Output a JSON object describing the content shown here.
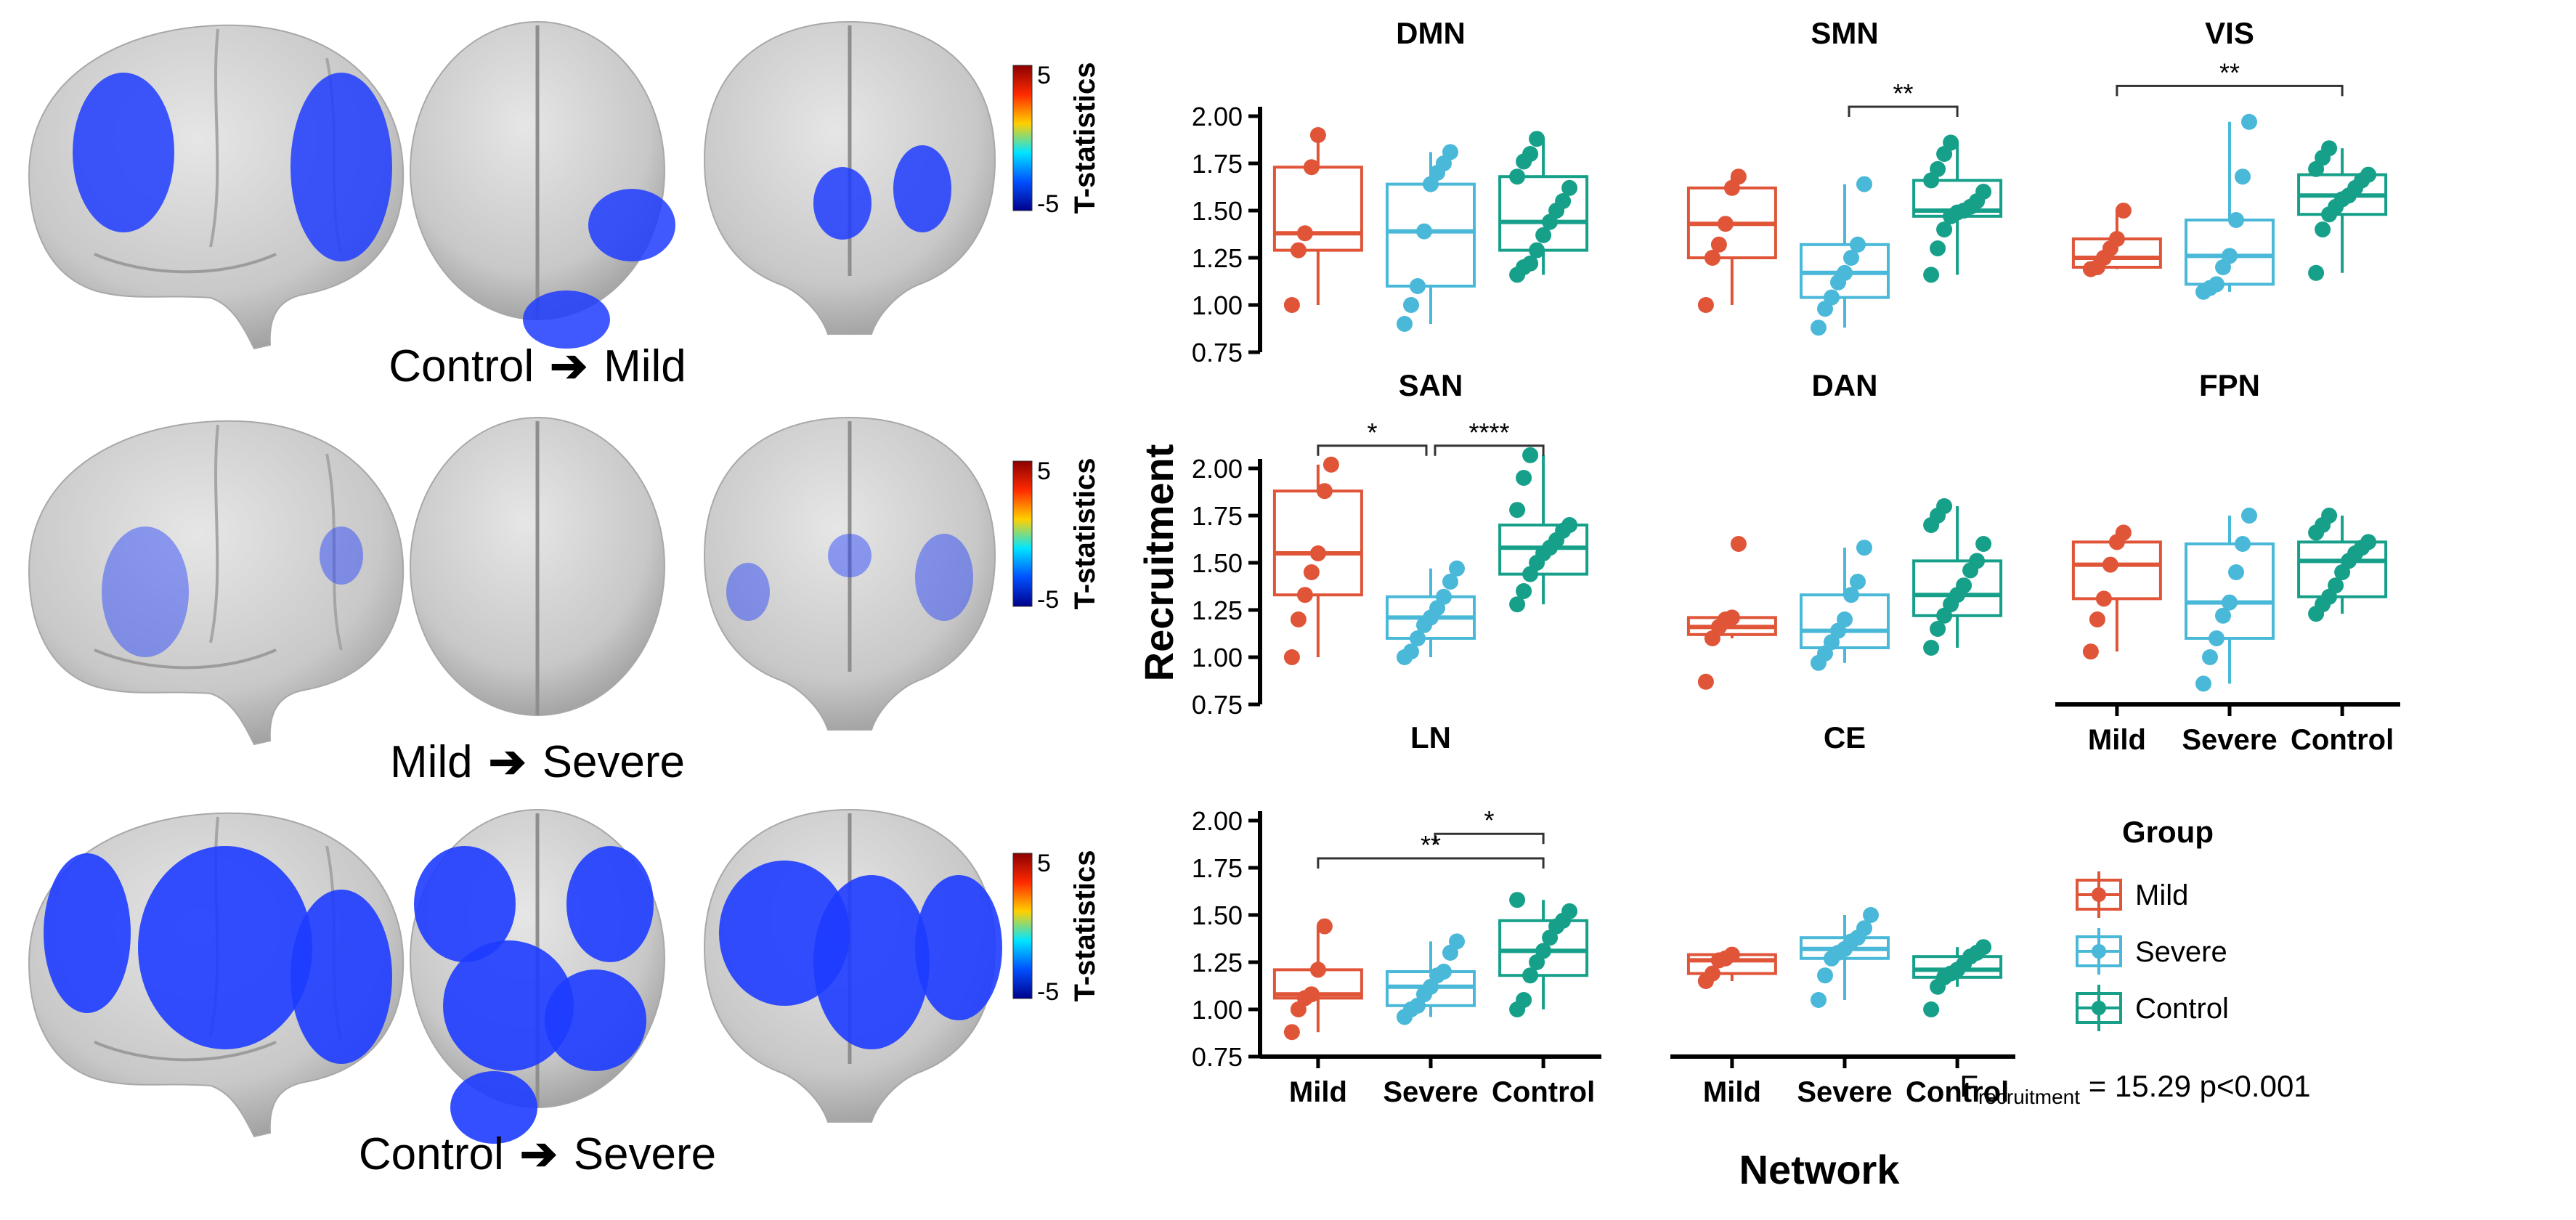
{
  "brain_panel": {
    "rows": [
      {
        "from": "Control",
        "to": "Mild",
        "arrow": "➔"
      },
      {
        "from": "Mild",
        "to": "Severe",
        "arrow": "➔"
      },
      {
        "from": "Control",
        "to": "Severe",
        "arrow": "➔"
      }
    ],
    "colorbar": {
      "label": "T-statistics",
      "max": "5",
      "min": "-5",
      "colors": [
        "#8b0000",
        "#ff2a00",
        "#ffd000",
        "#00e5ff",
        "#0050ff",
        "#00008b"
      ]
    },
    "activation_color": "#1e3cff",
    "surface_color": "#c8c8c8"
  },
  "chart_data": {
    "type": "box",
    "ylabel": "Recruitment",
    "xlabel": "Network",
    "yticks": [
      "2.00",
      "1.75",
      "1.50",
      "1.25",
      "1.00",
      "0.75"
    ],
    "ylim": [
      0.75,
      2.2
    ],
    "groups": [
      "Mild",
      "Severe",
      "Control"
    ],
    "group_colors": [
      "#e05438",
      "#4ab8d8",
      "#16a08a"
    ],
    "legend": {
      "title": "Group",
      "entries": [
        "Mild",
        "Severe",
        "Control"
      ],
      "placement": "right"
    },
    "stat_text": {
      "prefix": "F",
      "subscript": "recruitment",
      "suffix": " = 15.29 p<0.001"
    },
    "panels": [
      {
        "name": "DMN",
        "boxes": [
          {
            "q1": 1.29,
            "med": 1.38,
            "q3": 1.73,
            "lo": 1.0,
            "hi": 1.9,
            "points": [
              1.0,
              1.29,
              1.38,
              1.73,
              1.9
            ]
          },
          {
            "q1": 1.1,
            "med": 1.39,
            "q3": 1.64,
            "lo": 0.9,
            "hi": 1.81,
            "points": [
              0.9,
              1.0,
              1.1,
              1.39,
              1.64,
              1.7,
              1.75,
              1.81
            ]
          },
          {
            "q1": 1.29,
            "med": 1.44,
            "q3": 1.68,
            "lo": 1.16,
            "hi": 1.88,
            "points": [
              1.16,
              1.2,
              1.22,
              1.29,
              1.37,
              1.44,
              1.5,
              1.55,
              1.62,
              1.68,
              1.76,
              1.8,
              1.88
            ]
          }
        ],
        "brackets": []
      },
      {
        "name": "SMN",
        "boxes": [
          {
            "q1": 1.25,
            "med": 1.43,
            "q3": 1.62,
            "lo": 1.0,
            "hi": 1.68,
            "points": [
              1.0,
              1.25,
              1.32,
              1.43,
              1.62,
              1.68
            ]
          },
          {
            "q1": 1.04,
            "med": 1.17,
            "q3": 1.32,
            "lo": 0.88,
            "hi": 1.64,
            "points": [
              0.88,
              0.98,
              1.04,
              1.12,
              1.17,
              1.25,
              1.32,
              1.64
            ]
          },
          {
            "q1": 1.47,
            "med": 1.5,
            "q3": 1.66,
            "lo": 1.16,
            "hi": 1.86,
            "points": [
              1.16,
              1.3,
              1.4,
              1.47,
              1.49,
              1.5,
              1.52,
              1.55,
              1.6,
              1.66,
              1.72,
              1.8,
              1.86
            ]
          }
        ],
        "brackets": [
          {
            "a": 1,
            "b": 2,
            "y": 2.05,
            "label": "**"
          }
        ]
      },
      {
        "name": "VIS",
        "boxes": [
          {
            "q1": 1.2,
            "med": 1.25,
            "q3": 1.35,
            "lo": 1.19,
            "hi": 1.5,
            "points": [
              1.19,
              1.2,
              1.25,
              1.3,
              1.35,
              1.5
            ]
          },
          {
            "q1": 1.11,
            "med": 1.26,
            "q3": 1.45,
            "lo": 1.07,
            "hi": 1.97,
            "points": [
              1.07,
              1.09,
              1.11,
              1.2,
              1.26,
              1.45,
              1.68,
              1.97
            ]
          },
          {
            "q1": 1.48,
            "med": 1.58,
            "q3": 1.69,
            "lo": 1.17,
            "hi": 1.83,
            "points": [
              1.17,
              1.4,
              1.48,
              1.52,
              1.56,
              1.58,
              1.62,
              1.66,
              1.69,
              1.72,
              1.78,
              1.83
            ]
          }
        ],
        "brackets": [
          {
            "a": 0,
            "b": 2,
            "y": 2.16,
            "label": "**"
          }
        ]
      },
      {
        "name": "SAN",
        "boxes": [
          {
            "q1": 1.33,
            "med": 1.55,
            "q3": 1.88,
            "lo": 1.0,
            "hi": 2.02,
            "points": [
              1.0,
              1.2,
              1.33,
              1.45,
              1.55,
              1.88,
              2.02
            ]
          },
          {
            "q1": 1.1,
            "med": 1.21,
            "q3": 1.32,
            "lo": 1.0,
            "hi": 1.47,
            "points": [
              1.0,
              1.03,
              1.1,
              1.17,
              1.21,
              1.26,
              1.32,
              1.4,
              1.47
            ]
          },
          {
            "q1": 1.44,
            "med": 1.58,
            "q3": 1.7,
            "lo": 1.28,
            "hi": 2.07,
            "points": [
              1.28,
              1.35,
              1.44,
              1.5,
              1.55,
              1.58,
              1.62,
              1.67,
              1.7,
              1.78,
              1.95,
              2.07
            ]
          }
        ],
        "brackets": [
          {
            "a": 0,
            "b": 1,
            "y": 2.12,
            "label": "*"
          },
          {
            "a": 1,
            "b": 2,
            "y": 2.12,
            "label": "****"
          }
        ]
      },
      {
        "name": "DAN",
        "boxes": [
          {
            "q1": 1.12,
            "med": 1.16,
            "q3": 1.21,
            "lo": 1.1,
            "hi": 1.21,
            "points": [
              0.87,
              1.1,
              1.16,
              1.2,
              1.21,
              1.6
            ]
          },
          {
            "q1": 1.05,
            "med": 1.14,
            "q3": 1.33,
            "lo": 0.97,
            "hi": 1.58,
            "points": [
              0.97,
              1.02,
              1.08,
              1.14,
              1.2,
              1.33,
              1.4,
              1.58
            ]
          },
          {
            "q1": 1.22,
            "med": 1.33,
            "q3": 1.51,
            "lo": 1.05,
            "hi": 1.8,
            "points": [
              1.05,
              1.15,
              1.22,
              1.28,
              1.33,
              1.38,
              1.46,
              1.51,
              1.6,
              1.7,
              1.75,
              1.8
            ]
          }
        ],
        "brackets": []
      },
      {
        "name": "FPN",
        "boxes": [
          {
            "q1": 1.31,
            "med": 1.49,
            "q3": 1.61,
            "lo": 1.03,
            "hi": 1.66,
            "points": [
              1.03,
              1.2,
              1.31,
              1.49,
              1.61,
              1.66
            ]
          },
          {
            "q1": 1.1,
            "med": 1.29,
            "q3": 1.6,
            "lo": 0.86,
            "hi": 1.75,
            "points": [
              0.86,
              1.0,
              1.1,
              1.22,
              1.29,
              1.45,
              1.6,
              1.75
            ]
          },
          {
            "q1": 1.32,
            "med": 1.51,
            "q3": 1.61,
            "lo": 1.23,
            "hi": 1.75,
            "points": [
              1.23,
              1.28,
              1.32,
              1.38,
              1.45,
              1.51,
              1.55,
              1.58,
              1.61,
              1.66,
              1.7,
              1.75
            ]
          }
        ],
        "brackets": []
      },
      {
        "name": "LN",
        "boxes": [
          {
            "q1": 1.06,
            "med": 1.08,
            "q3": 1.21,
            "lo": 0.88,
            "hi": 1.44,
            "points": [
              0.88,
              1.0,
              1.06,
              1.08,
              1.21,
              1.44
            ]
          },
          {
            "q1": 1.02,
            "med": 1.12,
            "q3": 1.2,
            "lo": 0.96,
            "hi": 1.36,
            "points": [
              0.96,
              1.0,
              1.02,
              1.08,
              1.12,
              1.18,
              1.2,
              1.3,
              1.36
            ]
          },
          {
            "q1": 1.18,
            "med": 1.31,
            "q3": 1.47,
            "lo": 1.0,
            "hi": 1.58,
            "points": [
              1.0,
              1.05,
              1.18,
              1.25,
              1.31,
              1.38,
              1.44,
              1.47,
              1.52,
              1.58
            ]
          }
        ],
        "brackets": [
          {
            "a": 1,
            "b": 2,
            "y": 1.93,
            "label": "*"
          },
          {
            "a": 0,
            "b": 2,
            "y": 1.8,
            "label": "**"
          }
        ]
      },
      {
        "name": "CE",
        "boxes": [
          {
            "q1": 1.19,
            "med": 1.26,
            "q3": 1.29,
            "lo": 1.15,
            "hi": 1.29,
            "points": [
              1.15,
              1.19,
              1.26,
              1.27,
              1.29
            ]
          },
          {
            "q1": 1.27,
            "med": 1.32,
            "q3": 1.38,
            "lo": 1.05,
            "hi": 1.5,
            "points": [
              1.05,
              1.18,
              1.27,
              1.3,
              1.32,
              1.36,
              1.38,
              1.43,
              1.5
            ]
          },
          {
            "q1": 1.17,
            "med": 1.21,
            "q3": 1.28,
            "lo": 1.12,
            "hi": 1.33,
            "points": [
              1.0,
              1.12,
              1.17,
              1.19,
              1.21,
              1.24,
              1.28,
              1.3,
              1.33
            ]
          }
        ],
        "brackets": []
      }
    ]
  }
}
